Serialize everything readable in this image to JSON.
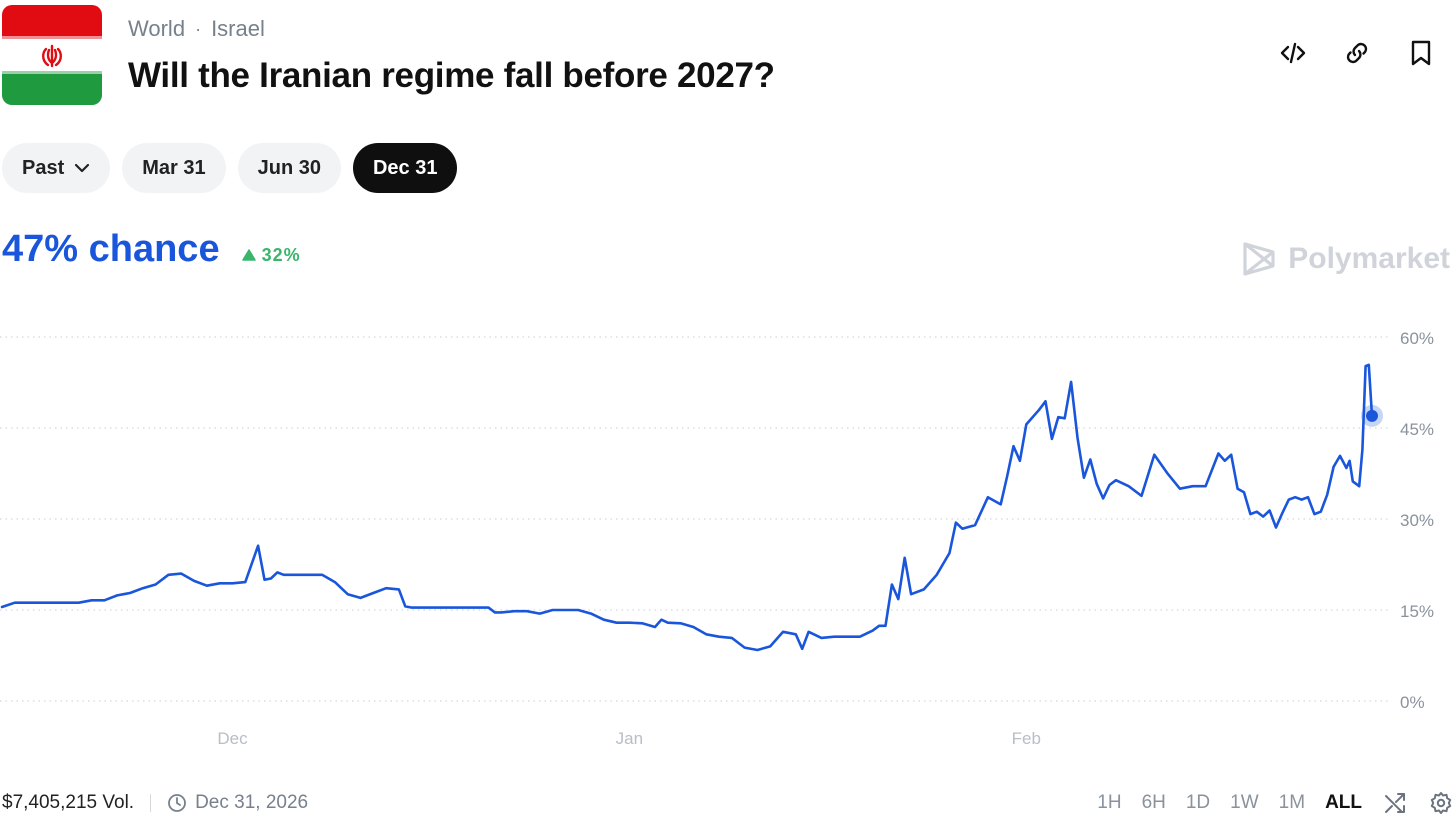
{
  "header": {
    "breadcrumb": [
      "World",
      "Israel"
    ],
    "title": "Will the Iranian regime fall before 2027?"
  },
  "tabs": [
    {
      "label": "Past",
      "active": false,
      "dropdown": true
    },
    {
      "label": "Mar 31",
      "active": false
    },
    {
      "label": "Jun 30",
      "active": false
    },
    {
      "label": "Dec 31",
      "active": true
    }
  ],
  "summary": {
    "chance": "47% chance",
    "delta": "32%",
    "delta_direction": "up"
  },
  "watermark": "Polymarket",
  "footer": {
    "volume": "$7,405,215 Vol.",
    "end_date": "Dec 31, 2026",
    "ranges": [
      "1H",
      "6H",
      "1D",
      "1W",
      "1M",
      "ALL"
    ],
    "active_range": "ALL"
  },
  "colors": {
    "line": "#1a56db",
    "up": "#3ab56c",
    "grid": "#d5d8dd",
    "axis_text": "#8a929c"
  },
  "icons": [
    "code-icon",
    "link-icon",
    "bookmark-icon",
    "chevron-down-icon",
    "clock-icon",
    "shuffle-icon",
    "gear-icon"
  ],
  "chart_data": {
    "type": "line",
    "ylabel": "",
    "xlabel": "",
    "ylim": [
      0,
      60
    ],
    "yticks": [
      "60%",
      "45%",
      "30%",
      "15%",
      "0%"
    ],
    "ytick_values": [
      60,
      45,
      30,
      15,
      0
    ],
    "x_tick_labels": [
      "Dec",
      "Jan",
      "Feb"
    ],
    "x_tick_dates": [
      "2025-12-01",
      "2026-01-01",
      "2026-02-01"
    ],
    "x_range": [
      "2025-11-13",
      "2026-02-28"
    ],
    "grid": true,
    "series": [
      {
        "values": [
          [
            "2025-11-13",
            15.5
          ],
          [
            "2025-11-14",
            16.2
          ],
          [
            "2025-11-16",
            16.2
          ],
          [
            "2025-11-18",
            16.2
          ],
          [
            "2025-11-19",
            16.2
          ],
          [
            "2025-11-20",
            16.6
          ],
          [
            "2025-11-21",
            16.6
          ],
          [
            "2025-11-22",
            17.4
          ],
          [
            "2025-11-23",
            17.8
          ],
          [
            "2025-11-24",
            18.6
          ],
          [
            "2025-11-25",
            19.2
          ],
          [
            "2025-11-26",
            20.8
          ],
          [
            "2025-11-27",
            21.0
          ],
          [
            "2025-11-28",
            19.8
          ],
          [
            "2025-11-29",
            19.0
          ],
          [
            "2025-11-30",
            19.4
          ],
          [
            "2025-12-01",
            19.4
          ],
          [
            "2025-12-02",
            19.6
          ],
          [
            "2025-12-03",
            25.6
          ],
          [
            "2025-12-03T12",
            20.0
          ],
          [
            "2025-12-04",
            20.2
          ],
          [
            "2025-12-04T12",
            21.2
          ],
          [
            "2025-12-05",
            20.8
          ],
          [
            "2025-12-06",
            20.8
          ],
          [
            "2025-12-07",
            20.8
          ],
          [
            "2025-12-08",
            20.8
          ],
          [
            "2025-12-09",
            19.6
          ],
          [
            "2025-12-10",
            17.6
          ],
          [
            "2025-12-11",
            17.0
          ],
          [
            "2025-12-12",
            17.8
          ],
          [
            "2025-12-13",
            18.6
          ],
          [
            "2025-12-14",
            18.4
          ],
          [
            "2025-12-14T12",
            15.6
          ],
          [
            "2025-12-15",
            15.4
          ],
          [
            "2025-12-17",
            15.4
          ],
          [
            "2025-12-19",
            15.4
          ],
          [
            "2025-12-21",
            15.4
          ],
          [
            "2025-12-21T12",
            14.6
          ],
          [
            "2025-12-22",
            14.6
          ],
          [
            "2025-12-23",
            14.8
          ],
          [
            "2025-12-24",
            14.8
          ],
          [
            "2025-12-25",
            14.4
          ],
          [
            "2025-12-26",
            15.0
          ],
          [
            "2025-12-27",
            15.0
          ],
          [
            "2025-12-28",
            15.0
          ],
          [
            "2025-12-29",
            14.4
          ],
          [
            "2025-12-30",
            13.4
          ],
          [
            "2025-12-31",
            12.9
          ],
          [
            "2026-01-01",
            12.9
          ],
          [
            "2026-01-02",
            12.8
          ],
          [
            "2026-01-03",
            12.2
          ],
          [
            "2026-01-03T12",
            13.4
          ],
          [
            "2026-01-04",
            12.9
          ],
          [
            "2026-01-05",
            12.8
          ],
          [
            "2026-01-06",
            12.2
          ],
          [
            "2026-01-07",
            11.0
          ],
          [
            "2026-01-08",
            10.6
          ],
          [
            "2026-01-09",
            10.4
          ],
          [
            "2026-01-10",
            8.8
          ],
          [
            "2026-01-11",
            8.4
          ],
          [
            "2026-01-12",
            9.0
          ],
          [
            "2026-01-13",
            11.4
          ],
          [
            "2026-01-14",
            11.0
          ],
          [
            "2026-01-14T12",
            8.6
          ],
          [
            "2026-01-15",
            11.4
          ],
          [
            "2026-01-16",
            10.4
          ],
          [
            "2026-01-17",
            10.6
          ],
          [
            "2026-01-18",
            10.6
          ],
          [
            "2026-01-19",
            10.6
          ],
          [
            "2026-01-20",
            11.6
          ],
          [
            "2026-01-20T12",
            12.4
          ],
          [
            "2026-01-21",
            12.4
          ],
          [
            "2026-01-21T12",
            19.2
          ],
          [
            "2026-01-22",
            16.8
          ],
          [
            "2026-01-22T12",
            23.6
          ],
          [
            "2026-01-23",
            17.6
          ],
          [
            "2026-01-24",
            18.4
          ],
          [
            "2026-01-25",
            20.8
          ],
          [
            "2026-01-26",
            24.4
          ],
          [
            "2026-01-26T12",
            29.4
          ],
          [
            "2026-01-27",
            28.4
          ],
          [
            "2026-01-28",
            29.0
          ],
          [
            "2026-01-29",
            33.6
          ],
          [
            "2026-01-30",
            32.4
          ],
          [
            "2026-01-30T12",
            37.0
          ],
          [
            "2026-01-31",
            42.0
          ],
          [
            "2026-01-31T12",
            39.6
          ],
          [
            "2026-02-01",
            45.6
          ],
          [
            "2026-02-02",
            48.0
          ],
          [
            "2026-02-02T12",
            49.4
          ],
          [
            "2026-02-03",
            43.2
          ],
          [
            "2026-02-03T12",
            46.8
          ],
          [
            "2026-02-04",
            46.6
          ],
          [
            "2026-02-04T12",
            52.6
          ],
          [
            "2026-02-05",
            43.4
          ],
          [
            "2026-02-05T12",
            36.8
          ],
          [
            "2026-02-06",
            39.8
          ],
          [
            "2026-02-06T12",
            35.8
          ],
          [
            "2026-02-07",
            33.4
          ],
          [
            "2026-02-07T12",
            35.6
          ],
          [
            "2026-02-08",
            36.4
          ],
          [
            "2026-02-09",
            35.4
          ],
          [
            "2026-02-10",
            33.8
          ],
          [
            "2026-02-11",
            40.6
          ],
          [
            "2026-02-12",
            37.6
          ],
          [
            "2026-02-13",
            35.0
          ],
          [
            "2026-02-14",
            35.4
          ],
          [
            "2026-02-15",
            35.4
          ],
          [
            "2026-02-16",
            40.8
          ],
          [
            "2026-02-16T12",
            39.6
          ],
          [
            "2026-02-17",
            40.6
          ],
          [
            "2026-02-17T12",
            35.0
          ],
          [
            "2026-02-18",
            34.4
          ],
          [
            "2026-02-18T12",
            30.8
          ],
          [
            "2026-02-19",
            31.2
          ],
          [
            "2026-02-19T12",
            30.4
          ],
          [
            "2026-02-20",
            31.4
          ],
          [
            "2026-02-20T12",
            28.6
          ],
          [
            "2026-02-21",
            31.0
          ],
          [
            "2026-02-21T12",
            33.2
          ],
          [
            "2026-02-22",
            33.6
          ],
          [
            "2026-02-22T12",
            33.2
          ],
          [
            "2026-02-23",
            33.6
          ],
          [
            "2026-02-23T12",
            30.8
          ],
          [
            "2026-02-24",
            31.2
          ],
          [
            "2026-02-24T12",
            34.0
          ],
          [
            "2026-02-25",
            38.6
          ],
          [
            "2026-02-25T12",
            40.4
          ],
          [
            "2026-02-26",
            38.4
          ],
          [
            "2026-02-26T06",
            39.6
          ],
          [
            "2026-02-26T12",
            36.2
          ],
          [
            "2026-02-27",
            35.4
          ],
          [
            "2026-02-27T06",
            41.4
          ],
          [
            "2026-02-27T12",
            55.2
          ],
          [
            "2026-02-27T18",
            55.4
          ],
          [
            "2026-02-28",
            47.0
          ]
        ]
      }
    ],
    "last_value": 47.0
  }
}
